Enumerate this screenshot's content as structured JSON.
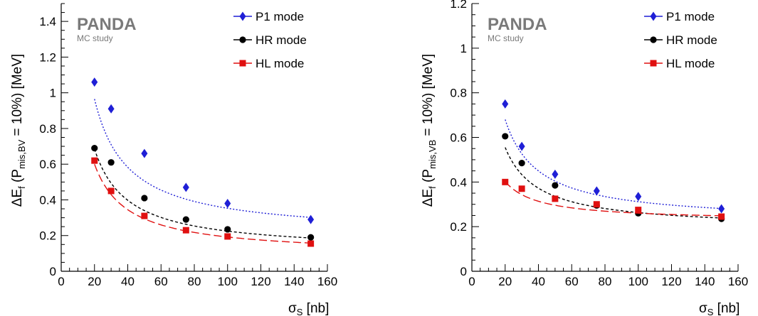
{
  "colors": {
    "P1": "#1f1fd6",
    "HR": "#000000",
    "HL": "#e01010"
  },
  "logo": {
    "main": "PANDA",
    "sub": "MC study"
  },
  "legend": [
    "P1 mode",
    "HR mode",
    "HL mode"
  ],
  "chart_data": [
    {
      "type": "scatter",
      "xlabel_main": "σ",
      "xlabel_sub": "S",
      "xlabel_unit": " [nb]",
      "ylabel": {
        "pre": "ΔE",
        "sub1": "f",
        "mid": " (P",
        "sub2": "mis,BV",
        "post": " = 10%) [MeV]"
      },
      "xlim": [
        0,
        160
      ],
      "ylim": [
        0,
        1.5
      ],
      "xticks": [
        0,
        20,
        40,
        60,
        80,
        100,
        120,
        140,
        160
      ],
      "yticks": [
        0,
        0.2,
        0.4,
        0.6,
        0.8,
        1.0,
        1.2,
        1.4
      ],
      "ytick_labels": [
        "0",
        "0.2",
        "0.4",
        "0.6",
        "0.8",
        "1",
        "1.2",
        "1.4"
      ],
      "grid": false,
      "legend_position": "top-right",
      "x": [
        20,
        30,
        50,
        75,
        100,
        150
      ],
      "series": [
        {
          "name": "P1 mode",
          "key": "P1",
          "values": [
            1.06,
            0.91,
            0.66,
            0.47,
            0.38,
            0.29
          ],
          "fit": {
            "a": 15.3,
            "c": 0.2
          }
        },
        {
          "name": "HR mode",
          "key": "HR",
          "values": [
            0.69,
            0.61,
            0.41,
            0.29,
            0.235,
            0.19
          ],
          "fit": {
            "a": 11.5,
            "c": 0.11
          }
        },
        {
          "name": "HL mode",
          "key": "HL",
          "values": [
            0.62,
            0.45,
            0.31,
            0.23,
            0.195,
            0.155
          ],
          "fit": {
            "a": 10.2,
            "c": 0.09
          }
        }
      ]
    },
    {
      "type": "scatter",
      "xlabel_main": "σ",
      "xlabel_sub": "S",
      "xlabel_unit": " [nb]",
      "ylabel": {
        "pre": "ΔE",
        "sub1": "f",
        "mid": " (P",
        "sub2": "mis,VB",
        "post": " = 10%) [MeV]"
      },
      "xlim": [
        0,
        160
      ],
      "ylim": [
        0,
        1.2
      ],
      "xticks": [
        0,
        20,
        40,
        60,
        80,
        100,
        120,
        140,
        160
      ],
      "yticks": [
        0,
        0.2,
        0.4,
        0.6,
        0.8,
        1.0,
        1.2
      ],
      "ytick_labels": [
        "0",
        "0.2",
        "0.4",
        "0.6",
        "0.8",
        "1",
        "1.2"
      ],
      "grid": false,
      "legend_position": "top-right",
      "x": [
        20,
        30,
        50,
        75,
        100,
        150
      ],
      "series": [
        {
          "name": "P1 mode",
          "key": "P1",
          "values": [
            0.75,
            0.56,
            0.435,
            0.36,
            0.335,
            0.28
          ],
          "fit": {
            "a": 9.2,
            "c": 0.22
          }
        },
        {
          "name": "HR mode",
          "key": "HR",
          "values": [
            0.605,
            0.485,
            0.385,
            0.295,
            0.26,
            0.235
          ],
          "fit": {
            "a": 7.3,
            "c": 0.19
          }
        },
        {
          "name": "HL mode",
          "key": "HL",
          "values": [
            0.4,
            0.37,
            0.325,
            0.3,
            0.275,
            0.245
          ],
          "fit": {
            "a": 3.55,
            "c": 0.225
          }
        }
      ]
    }
  ]
}
